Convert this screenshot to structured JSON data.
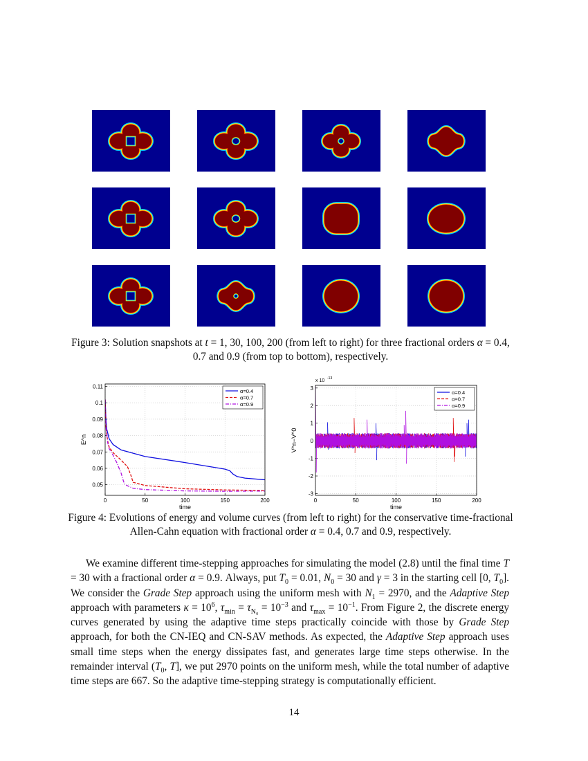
{
  "figure3": {
    "times": [
      1,
      30,
      100,
      200
    ],
    "alphas": [
      0.4,
      0.7,
      0.9
    ],
    "colors": {
      "background": "#00008f",
      "interior": "#800000",
      "edge_outer": "#00c8ff",
      "edge_inner": "#ffff00"
    },
    "snapshots": [
      [
        "petals-square",
        "petals-hole",
        "petals-hole-small",
        "star"
      ],
      [
        "petals-square",
        "petals-hole",
        "bulged-square",
        "ellipse"
      ],
      [
        "petals-square",
        "star-hole",
        "circle",
        "circle"
      ]
    ],
    "caption": [
      {
        "t": "Figure 3: Solution snapshots at "
      },
      {
        "t": "t",
        "s": "i"
      },
      {
        "t": " = 1, 30, 100, 200 (from left to right) for three fractional orders "
      },
      {
        "t": "α",
        "s": "i"
      },
      {
        "t": " = 0.4, 0.7 and 0.9 (from top to bottom), respectively."
      }
    ]
  },
  "chart_data": [
    {
      "type": "line",
      "xlabel": "time",
      "ylabel": "E^n",
      "xlim": [
        0,
        200
      ],
      "ylim": [
        0.0435,
        0.1115
      ],
      "xticks": [
        "0",
        "50",
        "100",
        "150",
        "200"
      ],
      "yticks": [
        "0.05",
        "0.06",
        "0.07",
        "0.08",
        "0.09",
        "0.1",
        "0.11"
      ],
      "grid": true,
      "legend": "top-right",
      "series": [
        {
          "name": "α=0.4",
          "color": "#1010e0",
          "dash": "solid",
          "x": [
            0,
            1,
            2,
            5,
            10,
            20,
            50,
            100,
            150,
            156,
            160,
            165,
            175,
            200
          ],
          "y": [
            0.102,
            0.09,
            0.084,
            0.078,
            0.0745,
            0.0712,
            0.0672,
            0.0635,
            0.0595,
            0.0585,
            0.0565,
            0.055,
            0.054,
            0.053
          ]
        },
        {
          "name": "α=0.7",
          "color": "#e01010",
          "dash": "dashed",
          "x": [
            0,
            1,
            3,
            5,
            10,
            20,
            28,
            32,
            35,
            50,
            100,
            150,
            200
          ],
          "y": [
            0.102,
            0.085,
            0.077,
            0.073,
            0.0695,
            0.065,
            0.061,
            0.056,
            0.0515,
            0.0495,
            0.0475,
            0.0468,
            0.0465
          ]
        },
        {
          "name": "α=0.9",
          "color": "#b010e0",
          "dash": "dashdot",
          "x": [
            0,
            1,
            3,
            5,
            10,
            15,
            20,
            23,
            25,
            35,
            50,
            100,
            150,
            200
          ],
          "y": [
            0.102,
            0.085,
            0.076,
            0.072,
            0.068,
            0.063,
            0.057,
            0.052,
            0.05,
            0.0478,
            0.047,
            0.0462,
            0.046,
            0.0461
          ]
        }
      ]
    },
    {
      "type": "line",
      "xlabel": "time",
      "ylabel": "V^n−V^0",
      "yscale_label": "x 10",
      "yscale_exp": "-13",
      "xlim": [
        0,
        200
      ],
      "ylim": [
        -3.1,
        3.15
      ],
      "xticks": [
        "0",
        "50",
        "100",
        "150",
        "200"
      ],
      "yticks": [
        "-3",
        "-2",
        "-1",
        "0",
        "1",
        "2",
        "3"
      ],
      "grid": true,
      "legend": "top-right",
      "noise_amplitude": 0.4,
      "series": [
        {
          "name": "α=0.4",
          "color": "#1010e0",
          "dash": "solid",
          "spikes": [
            [
              15,
              1.05
            ],
            [
              16,
              -0.5
            ],
            [
              75,
              1.0
            ],
            [
              76,
              -1.1
            ],
            [
              188,
              1.0
            ],
            [
              190,
              1.2
            ],
            [
              186,
              -0.9
            ]
          ]
        },
        {
          "name": "α=0.7",
          "color": "#e01010",
          "dash": "dashed",
          "spikes": [
            [
              48,
              1.3
            ],
            [
              49,
              -0.7
            ],
            [
              171,
              1.3
            ],
            [
              172,
              -1.2
            ],
            [
              173,
              -0.9
            ]
          ]
        },
        {
          "name": "α=0.9",
          "color": "#b010e0",
          "dash": "dashdot",
          "spikes": [
            [
              0,
              3.2
            ],
            [
              1,
              -1.8
            ],
            [
              64,
              1.2
            ],
            [
              112,
              1.7
            ],
            [
              113,
              -1.3
            ],
            [
              110,
              0.9
            ]
          ]
        }
      ]
    }
  ],
  "figure4": {
    "caption": [
      {
        "t": "Figure 4: Evolutions of energy and volume curves (from left to right) for the conservative time-fractional Allen-Cahn equation with fractional order "
      },
      {
        "t": "α",
        "s": "i"
      },
      {
        "t": " = 0.4, 0.7 and 0.9, respectively."
      }
    ]
  },
  "body": {
    "segments": [
      {
        "t": "We examine different time-stepping approaches for simulating the model (2.8) until the final time "
      },
      {
        "t": "T",
        "s": "i"
      },
      {
        "t": " = 30 with a fractional order "
      },
      {
        "t": "α",
        "s": "i"
      },
      {
        "t": " = 0.9. Always, put "
      },
      {
        "t": "T",
        "s": "i"
      },
      {
        "t": "0",
        "s": "sub"
      },
      {
        "t": " = 0.01, "
      },
      {
        "t": "N",
        "s": "i"
      },
      {
        "t": "0",
        "s": "sub"
      },
      {
        "t": " = 30 and "
      },
      {
        "t": "γ",
        "s": "i"
      },
      {
        "t": " = 3 in the starting cell [0, "
      },
      {
        "t": "T",
        "s": "i"
      },
      {
        "t": "0",
        "s": "sub"
      },
      {
        "t": "]. We consider the "
      },
      {
        "t": "Grade Step",
        "s": "i"
      },
      {
        "t": " approach using the uniform mesh with "
      },
      {
        "t": "N",
        "s": "i"
      },
      {
        "t": "1",
        "s": "sub"
      },
      {
        "t": " = 2970, and the "
      },
      {
        "t": "Adaptive Step",
        "s": "i"
      },
      {
        "t": " approach with parameters "
      },
      {
        "t": "κ",
        "s": "i"
      },
      {
        "t": " = 10"
      },
      {
        "t": "6",
        "s": "sup"
      },
      {
        "t": ", "
      },
      {
        "t": "τ",
        "s": "i"
      },
      {
        "t": "min",
        "s": "sub"
      },
      {
        "t": " = "
      },
      {
        "t": "τ",
        "s": "i"
      },
      {
        "t": "N₀",
        "s": "sub"
      },
      {
        "t": " = 10"
      },
      {
        "t": "−3",
        "s": "sup"
      },
      {
        "t": " and "
      },
      {
        "t": "τ",
        "s": "i"
      },
      {
        "t": "max",
        "s": "sub"
      },
      {
        "t": " = 10"
      },
      {
        "t": "−1",
        "s": "sup"
      },
      {
        "t": ". From Figure 2, the discrete energy curves generated by using the adaptive time steps practically coincide with those by "
      },
      {
        "t": "Grade Step",
        "s": "i"
      },
      {
        "t": " approach, for both the CN-IEQ and CN-SAV methods. As expected, the "
      },
      {
        "t": "Adaptive Step",
        "s": "i"
      },
      {
        "t": " approach uses small time steps when the energy dissipates fast, and generates large time steps otherwise. In the remainder interval ("
      },
      {
        "t": "T",
        "s": "i"
      },
      {
        "t": "0",
        "s": "sub"
      },
      {
        "t": ", "
      },
      {
        "t": "T",
        "s": "i"
      },
      {
        "t": "], we put 2970 points on the uniform mesh, while the total number of adaptive time steps are 667. So the adaptive time-stepping strategy is computationally efficient."
      }
    ]
  },
  "page_number": "14"
}
